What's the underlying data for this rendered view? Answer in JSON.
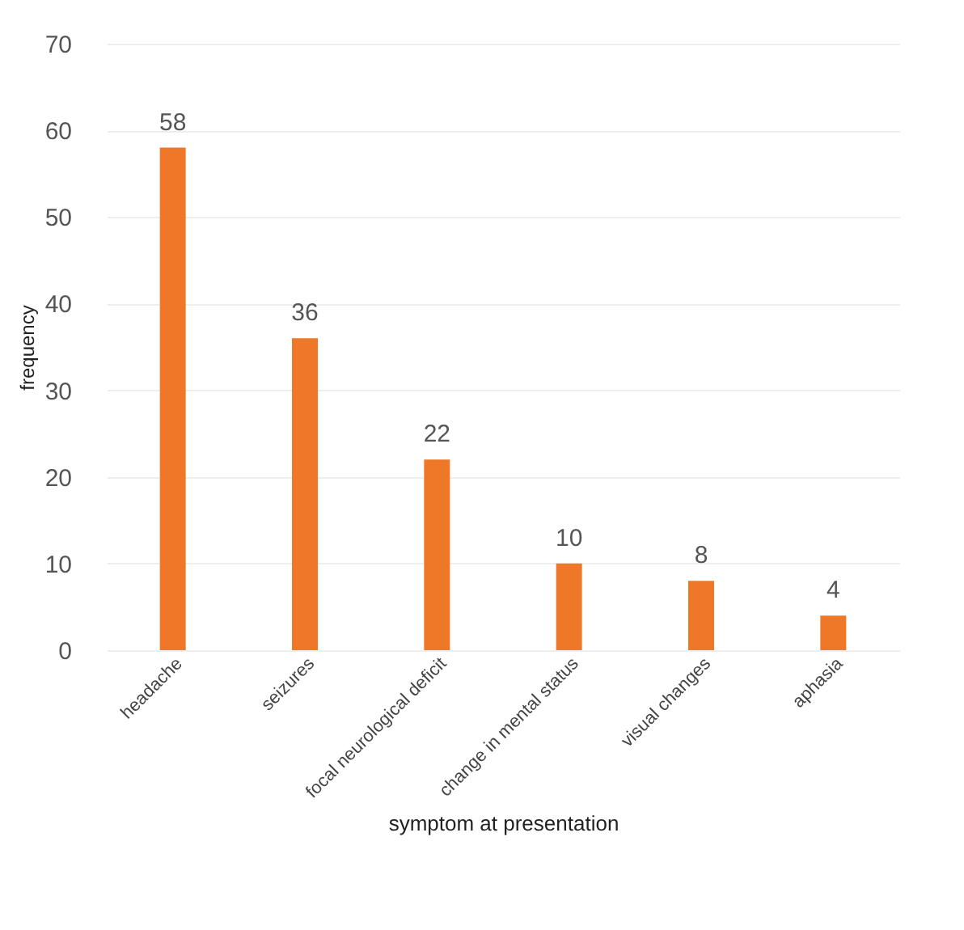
{
  "chart_data": {
    "type": "bar",
    "xlabel": "symptom at presentation",
    "ylabel": "frequency",
    "categories": [
      "headache",
      "seizures",
      "focal neurological deficit",
      "change in mental status",
      "visual changes",
      "aphasia"
    ],
    "values": [
      58,
      36,
      22,
      10,
      8,
      4
    ],
    "color": "#ee7728",
    "ylim": [
      0,
      70
    ],
    "yticks": [
      0,
      10,
      20,
      30,
      40,
      50,
      60,
      70
    ],
    "grid": "y",
    "data_labels": true
  }
}
